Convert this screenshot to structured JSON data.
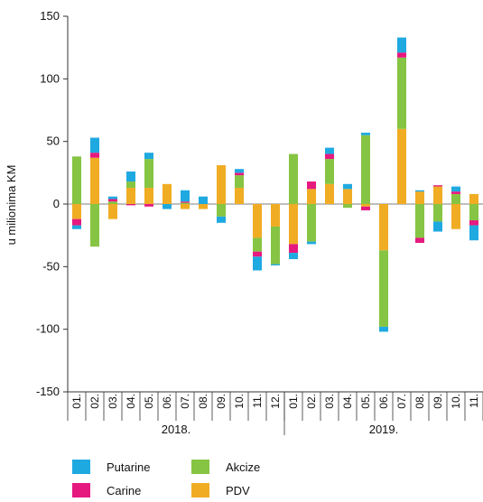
{
  "chart_data": {
    "type": "bar",
    "stacked": true,
    "title": "",
    "ylabel": "u milionima KM",
    "xlabel": "",
    "ylim": [
      -150,
      150
    ],
    "yticks": [
      150,
      100,
      50,
      0,
      -50,
      -100,
      -150
    ],
    "grid": false,
    "legend_position": "bottom",
    "categories": [
      "01.",
      "02.",
      "03.",
      "04.",
      "05.",
      "06.",
      "07.",
      "08.",
      "09.",
      "10.",
      "11.",
      "12.",
      "01.",
      "02.",
      "03.",
      "04.",
      "05.",
      "06.",
      "07.",
      "08.",
      "09.",
      "10.",
      "11."
    ],
    "year_groups": [
      {
        "label": "2018.",
        "count": 12
      },
      {
        "label": "2019.",
        "count": 11
      }
    ],
    "series": [
      {
        "name": "PDV",
        "color": "#f0ac23",
        "values": [
          -12,
          37,
          -12,
          13,
          13,
          16,
          -4,
          -4,
          31,
          13,
          -27,
          -18,
          -32,
          12,
          16,
          12,
          -2,
          -37,
          60,
          10,
          14,
          -20,
          8
        ]
      },
      {
        "name": "Akcize",
        "color": "#86c443",
        "values": [
          38,
          -34,
          2,
          5,
          23,
          0,
          1,
          0,
          -10,
          10,
          -11,
          -30,
          40,
          -30,
          20,
          -3,
          55,
          -61,
          57,
          -27,
          -14,
          8,
          -13
        ]
      },
      {
        "name": "Carine",
        "color": "#e6197f",
        "values": [
          -5,
          4,
          2,
          -1,
          -2,
          0,
          1,
          0,
          0,
          2,
          -4,
          0,
          -7,
          6,
          4,
          0,
          -3,
          0,
          4,
          -4,
          1,
          2,
          -4
        ]
      },
      {
        "name": "Putarine",
        "color": "#1fa9e1",
        "values": [
          -3,
          12,
          2,
          8,
          5,
          -4,
          9,
          6,
          -5,
          3,
          -11,
          -1,
          -5,
          -2,
          5,
          4,
          2,
          -4,
          12,
          1,
          -8,
          4,
          -12
        ]
      }
    ]
  },
  "legend": [
    {
      "name": "Putarine",
      "color": "#1fa9e1"
    },
    {
      "name": "Akcize",
      "color": "#86c443"
    },
    {
      "name": "Carine",
      "color": "#e6197f"
    },
    {
      "name": "PDV",
      "color": "#f0ac23"
    }
  ]
}
